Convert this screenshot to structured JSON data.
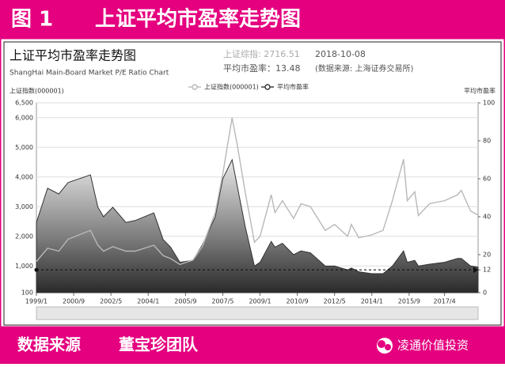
{
  "header": {
    "label": "图 1",
    "title": "上证平均市盈率走势图"
  },
  "footer": {
    "source": "数据来源",
    "team": "董宝珍团队",
    "account": "凌通价值投资"
  },
  "chart_data": {
    "type": "line",
    "title": "上证平均市盈率走势图",
    "subtitle": "ShangHai Main-Board Market P/E Ratio Chart",
    "info_index": "上证综指: 2716.51",
    "info_date": "2018-10-08",
    "info_pe": "平均市盈率：13.48",
    "info_source": "(数据来源: 上海证券交易所)",
    "ylabel": "上证指数(000001)",
    "y2label": "平均市盈率",
    "x": [
      "1999/1",
      "1999/7",
      "2000/1",
      "2000/6",
      "2001/6",
      "2001/10",
      "2002/1",
      "2002/6",
      "2003/1",
      "2003/6",
      "2004/4",
      "2004/9",
      "2005/1",
      "2005/6",
      "2006/1",
      "2006/6",
      "2007/1",
      "2007/5",
      "2007/10",
      "2008/1",
      "2008/5",
      "2008/10",
      "2009/1",
      "2009/7",
      "2009/9",
      "2010/1",
      "2010/7",
      "2010/11",
      "2011/4",
      "2011/12",
      "2012/5",
      "2012/12",
      "2013/2",
      "2013/6",
      "2014/1",
      "2014/7",
      "2014/12",
      "2015/6",
      "2015/8",
      "2015/12",
      "2016/2",
      "2016/8",
      "2017/4",
      "2017/11",
      "2018/1",
      "2018/6",
      "2018/10"
    ],
    "xlim": [
      "1999/1",
      "2018/10"
    ],
    "xticks": [
      "1999/1",
      "2000/9",
      "2002/5",
      "2004/1",
      "2005/9",
      "2007/5",
      "2009/1",
      "2010/9",
      "2012/5",
      "2014/1",
      "2015/9",
      "2017/4"
    ],
    "ylim": [
      100,
      6500
    ],
    "yticks": [
      100,
      {
        "value": 1000,
        "label": "1,000"
      },
      {
        "value": 2000,
        "label": "2,000"
      },
      {
        "value": 3000,
        "label": "3,000"
      },
      {
        "value": 4000,
        "label": "4,000"
      },
      {
        "value": 5000,
        "label": "5,000"
      },
      {
        "value": 6000,
        "label": "6,000"
      },
      {
        "value": 6500,
        "label": "6,500"
      }
    ],
    "y2lim": [
      0,
      100
    ],
    "y2ticks": [
      0,
      12,
      20,
      40,
      60,
      80,
      100
    ],
    "reference_line": 12,
    "grid": true,
    "series": [
      {
        "name": "上证指数(000001)",
        "color": "#b8b8b8",
        "values": [
          1150,
          1600,
          1500,
          1900,
          2200,
          1700,
          1500,
          1650,
          1500,
          1500,
          1700,
          1350,
          1250,
          1050,
          1200,
          1650,
          2800,
          4100,
          6000,
          5000,
          3500,
          1800,
          2000,
          3400,
          2800,
          3200,
          2600,
          3100,
          3000,
          2200,
          2400,
          2000,
          2400,
          1950,
          2050,
          2200,
          3200,
          4600,
          3200,
          3500,
          2700,
          3100,
          3200,
          3400,
          3550,
          2850,
          2716.51
        ]
      },
      {
        "name": "平均市盈率",
        "color": "#333333",
        "axis": "y2",
        "values": [
          37,
          55,
          52,
          58,
          62,
          45,
          40,
          45,
          37,
          38,
          42,
          28,
          24,
          16,
          17,
          25,
          40,
          60,
          70,
          55,
          35,
          14,
          16,
          27,
          24,
          26,
          20,
          22,
          21,
          14,
          14,
          12,
          13,
          11,
          10,
          10,
          14,
          22,
          16,
          17,
          14,
          15,
          16,
          18,
          18,
          14,
          13.48
        ]
      }
    ]
  }
}
